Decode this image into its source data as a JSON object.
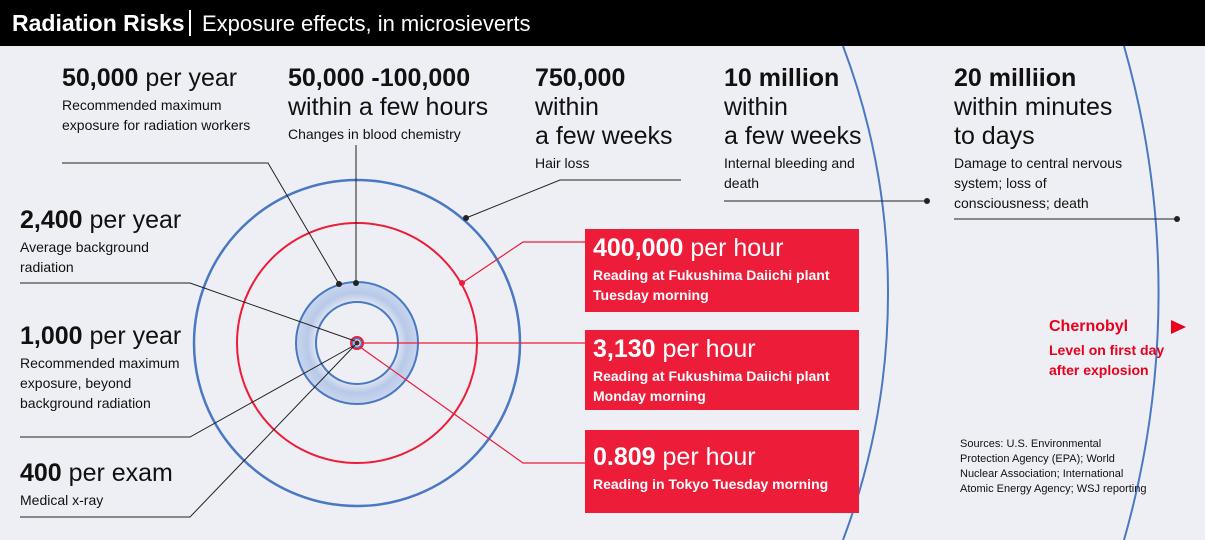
{
  "header": {
    "title": "Radiation Risks",
    "subtitle": "Exposure effects, in microsieverts"
  },
  "levels": [
    {
      "value": "50,000",
      "unit": "per year",
      "desc": "Recommended maximum exposure for radiation workers"
    },
    {
      "value": "50,000 -100,000",
      "line2": "within a few hours",
      "desc": "Changes in blood chemistry"
    },
    {
      "value": "750,000",
      "line2": "within",
      "line3": "a few weeks",
      "desc": "Hair loss"
    },
    {
      "value": "10 million",
      "line2": "within",
      "line3": "a few weeks",
      "desc": "Internal bleeding and death"
    },
    {
      "value": "20 milliion",
      "line2": "within minutes",
      "line3": "to days",
      "desc": "Damage to central nervous system; loss of consciousness; death"
    },
    {
      "value": "2,400",
      "unit": "per year",
      "desc": "Average background radiation"
    },
    {
      "value": "1,000",
      "unit": "per year",
      "desc": "Recommended maximum exposure, beyond background radiation"
    },
    {
      "value": "400",
      "unit": "per exam",
      "desc": "Medical x-ray"
    }
  ],
  "readings": [
    {
      "value": "400,000",
      "unit": "per hour",
      "desc": "Reading at Fukushima Daiichi plant Tuesday morning"
    },
    {
      "value": "3,130",
      "unit": "per hour",
      "desc": "Reading at Fukushima Daiichi plant Monday morning"
    },
    {
      "value": "0.809",
      "unit": "per hour",
      "desc": "Reading in Tokyo Tuesday morning"
    }
  ],
  "chernobyl": {
    "title": "Chernobyl",
    "desc": "Level on first day after explosion"
  },
  "sources": "Sources: U.S. Environmental Protection Agency (EPA); World Nuclear Association; International Atomic Energy Agency; WSJ reporting",
  "colors": {
    "blue": "#4a78c2",
    "red": "#ed1c38",
    "chernobyl": "#e8001c",
    "header_bg": "#000000",
    "page_bg": "#eeeff4"
  }
}
